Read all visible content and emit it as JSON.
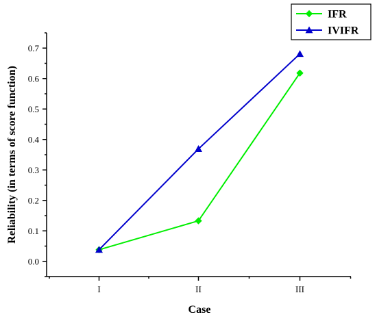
{
  "chart_data": {
    "type": "line",
    "categories": [
      "I",
      "II",
      "III"
    ],
    "series": [
      {
        "name": "IFR",
        "values": [
          0.038,
          0.133,
          0.618
        ],
        "color": "#00ee00",
        "marker": "diamond"
      },
      {
        "name": "IVIFR",
        "values": [
          0.038,
          0.369,
          0.681
        ],
        "color": "#0000cc",
        "marker": "triangle"
      }
    ],
    "title": "",
    "xlabel": "Case",
    "ylabel": "Reliability (in terms of score function)",
    "ylim": [
      -0.05,
      0.75
    ],
    "yticks": [
      "0.0",
      "0.1",
      "0.2",
      "0.3",
      "0.4",
      "0.5",
      "0.6",
      "0.7"
    ],
    "yticks_values": [
      0.0,
      0.1,
      0.2,
      0.3,
      0.4,
      0.5,
      0.6,
      0.7
    ],
    "grid": false,
    "legend_position": "top-right"
  }
}
